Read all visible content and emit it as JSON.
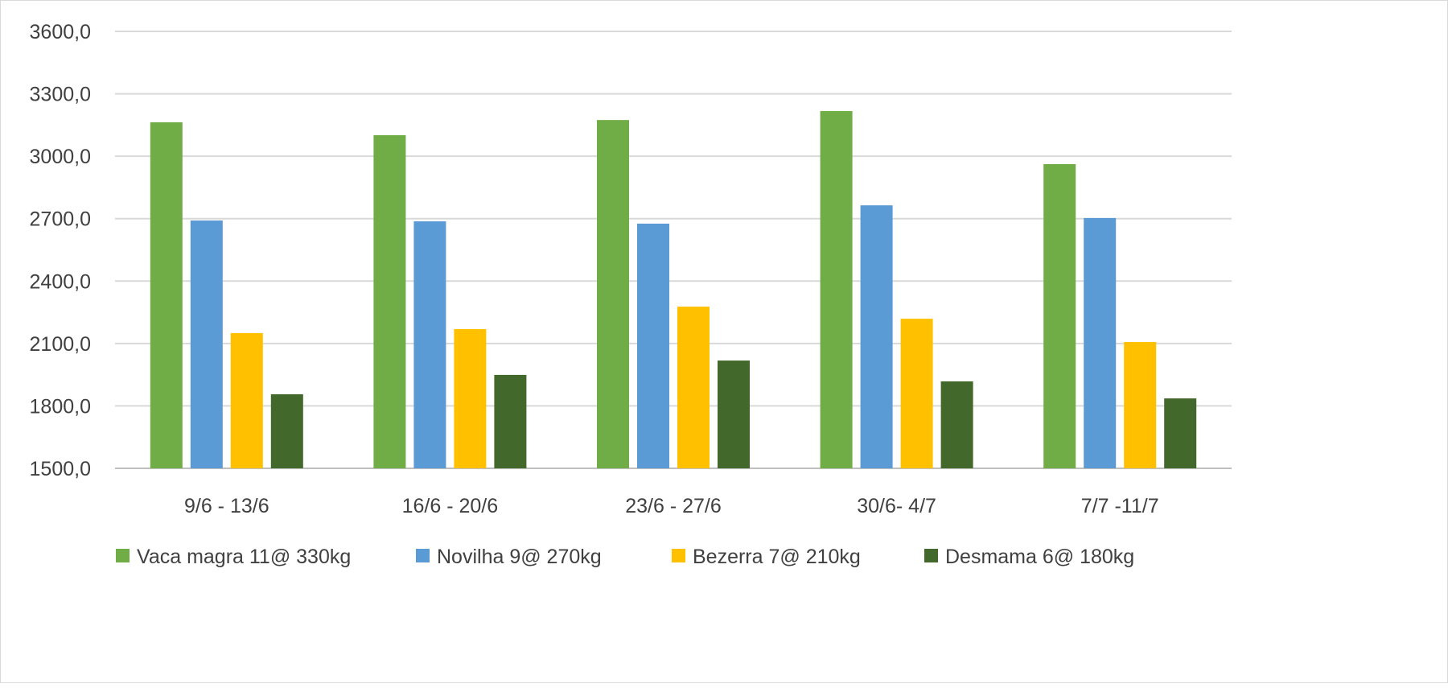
{
  "chart_data": {
    "type": "bar",
    "title": "",
    "xlabel": "",
    "ylabel": "",
    "ylim": [
      1500,
      3600
    ],
    "yticks": [
      "1500,0",
      "1800,0",
      "2100,0",
      "2400,0",
      "2700,0",
      "3000,0",
      "3300,0",
      "3600,0"
    ],
    "ytick_values": [
      1500,
      1800,
      2100,
      2400,
      2700,
      3000,
      3300,
      3600
    ],
    "grid": true,
    "legend_position": "bottom",
    "categories": [
      "9/6 - 13/6",
      "16/6 - 20/6",
      "23/6 - 27/6",
      "30/6- 4/7",
      "7/7 -11/7"
    ],
    "series": [
      {
        "name": "Vaca magra 11@ 330kg",
        "color": "#70AD47",
        "values": [
          3163,
          3101,
          3174,
          3217,
          2962
        ]
      },
      {
        "name": "Novilha 9@ 270kg",
        "color": "#5B9BD5",
        "values": [
          2691,
          2687,
          2676,
          2764,
          2703
        ]
      },
      {
        "name": "Bezerra 7@ 210kg",
        "color": "#FFC000",
        "values": [
          2150,
          2169,
          2277,
          2219,
          2107
        ]
      },
      {
        "name": "Desmama 6@ 180kg",
        "color": "#43682B",
        "values": [
          1856,
          1949,
          2018,
          1918,
          1836
        ]
      }
    ]
  }
}
